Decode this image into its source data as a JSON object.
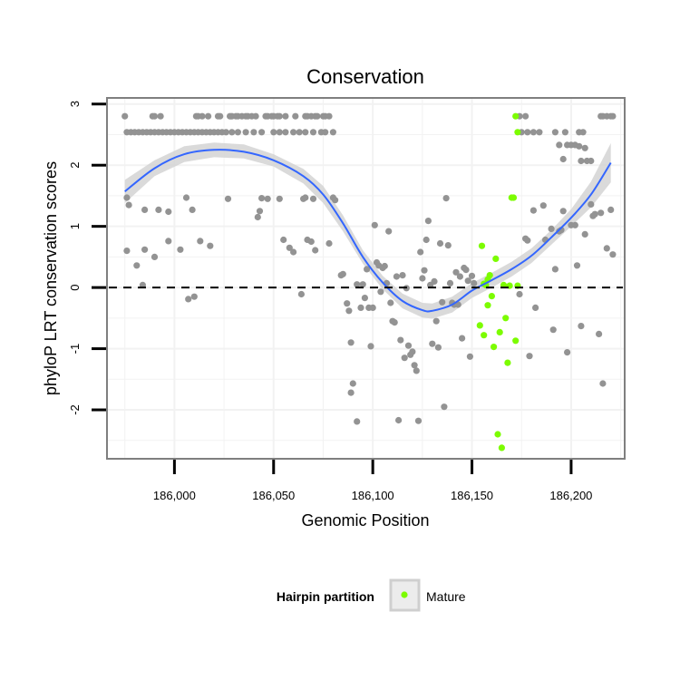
{
  "chart_data": {
    "type": "scatter",
    "title": "Conservation",
    "xlabel": "Genomic Position",
    "ylabel": "phyloP LRT conservation scores",
    "xlim": [
      185966,
      186227
    ],
    "ylim": [
      -2.8,
      3.1
    ],
    "x_ticks": [
      186000,
      186050,
      186100,
      186150,
      186200
    ],
    "x_tick_labels": [
      "186,000",
      "186,050",
      "186,100",
      "186,150",
      "186,200"
    ],
    "y_ticks": [
      -2,
      -1,
      0,
      1,
      2,
      3
    ],
    "y_tick_labels": [
      "-2",
      "-1",
      "0",
      "1",
      "2",
      "3"
    ],
    "grid": true,
    "reference_line": {
      "y": 0,
      "style": "dashed",
      "color": "#000000"
    },
    "legend": {
      "title": "Hairpin partition",
      "placement": "bottom",
      "entries": [
        {
          "label": "Mature",
          "color": "#7cfc00"
        }
      ]
    },
    "colors": {
      "background_points": "#939393",
      "mature_points": "#7cfc00",
      "smooth_line": "#3366ff",
      "confidence_band": "#d3d3d3",
      "panel_border": "#7f7f7f",
      "grid": "#f2f2f2"
    },
    "series": [
      {
        "name": "Other",
        "color": "#939393",
        "points": [
          [
            185975,
            2.8
          ],
          [
            185976,
            2.54
          ],
          [
            185978,
            2.54
          ],
          [
            185980,
            2.54
          ],
          [
            185982,
            2.54
          ],
          [
            185984,
            2.54
          ],
          [
            185986,
            2.54
          ],
          [
            185988,
            2.54
          ],
          [
            185990,
            2.54
          ],
          [
            185992,
            2.54
          ],
          [
            185994,
            2.54
          ],
          [
            185996,
            2.54
          ],
          [
            185998,
            2.54
          ],
          [
            186000,
            2.54
          ],
          [
            186002,
            2.54
          ],
          [
            186004,
            2.54
          ],
          [
            186006,
            2.54
          ],
          [
            186008,
            2.54
          ],
          [
            186010,
            2.54
          ],
          [
            186012,
            2.54
          ],
          [
            186014,
            2.54
          ],
          [
            186016,
            2.54
          ],
          [
            186018,
            2.54
          ],
          [
            186020,
            2.54
          ],
          [
            186022,
            2.54
          ],
          [
            186024,
            2.54
          ],
          [
            186026,
            2.54
          ],
          [
            186029,
            2.54
          ],
          [
            186032,
            2.54
          ],
          [
            186036,
            2.54
          ],
          [
            186040,
            2.54
          ],
          [
            186044,
            2.54
          ],
          [
            186050,
            2.54
          ],
          [
            186053,
            2.54
          ],
          [
            186056,
            2.54
          ],
          [
            186060,
            2.54
          ],
          [
            186063,
            2.54
          ],
          [
            186066,
            2.54
          ],
          [
            186070,
            2.54
          ],
          [
            186074,
            2.54
          ],
          [
            186076,
            2.54
          ],
          [
            186080,
            2.54
          ],
          [
            185989,
            2.8
          ],
          [
            185990,
            2.8
          ],
          [
            185993,
            2.8
          ],
          [
            186011,
            2.8
          ],
          [
            186012,
            2.8
          ],
          [
            186014,
            2.8
          ],
          [
            186017,
            2.8
          ],
          [
            186022,
            2.8
          ],
          [
            186023,
            2.8
          ],
          [
            186028,
            2.8
          ],
          [
            186029,
            2.8
          ],
          [
            186031,
            2.8
          ],
          [
            186032,
            2.8
          ],
          [
            186034,
            2.8
          ],
          [
            186036,
            2.8
          ],
          [
            186037,
            2.8
          ],
          [
            186039,
            2.8
          ],
          [
            186041,
            2.8
          ],
          [
            186046,
            2.8
          ],
          [
            186047,
            2.8
          ],
          [
            186049,
            2.8
          ],
          [
            186050,
            2.8
          ],
          [
            186052,
            2.8
          ],
          [
            186053,
            2.8
          ],
          [
            186056,
            2.8
          ],
          [
            186061,
            2.8
          ],
          [
            186066,
            2.8
          ],
          [
            186067,
            2.8
          ],
          [
            186069,
            2.8
          ],
          [
            186071,
            2.8
          ],
          [
            186072,
            2.8
          ],
          [
            186075,
            2.8
          ],
          [
            186076,
            2.8
          ],
          [
            186078,
            2.8
          ],
          [
            186174,
            2.8
          ],
          [
            186177,
            2.8
          ],
          [
            186175,
            2.54
          ],
          [
            186178,
            2.54
          ],
          [
            186181,
            2.54
          ],
          [
            186184,
            2.54
          ],
          [
            186192,
            2.54
          ],
          [
            186197,
            2.54
          ],
          [
            186204,
            2.54
          ],
          [
            186206,
            2.54
          ],
          [
            186215,
            2.8
          ],
          [
            186216,
            2.8
          ],
          [
            186218,
            2.8
          ],
          [
            186220,
            2.8
          ],
          [
            186221,
            2.8
          ],
          [
            186194,
            2.33
          ],
          [
            186198,
            2.33
          ],
          [
            186200,
            2.33
          ],
          [
            186202,
            2.33
          ],
          [
            186204,
            2.31
          ],
          [
            186207,
            2.28
          ],
          [
            186196,
            2.1
          ],
          [
            186205,
            2.07
          ],
          [
            186208,
            2.07
          ],
          [
            186210,
            2.07
          ],
          [
            185976,
            1.47
          ],
          [
            185977,
            1.35
          ],
          [
            185985,
            1.27
          ],
          [
            185992,
            1.27
          ],
          [
            185997,
            1.24
          ],
          [
            186006,
            1.47
          ],
          [
            186009,
            1.27
          ],
          [
            186013,
            0.76
          ],
          [
            186018,
            0.68
          ],
          [
            186027,
            1.45
          ],
          [
            186042,
            1.15
          ],
          [
            186043,
            1.25
          ],
          [
            186044,
            1.46
          ],
          [
            186047,
            1.45
          ],
          [
            186053,
            1.45
          ],
          [
            186065,
            1.45
          ],
          [
            186066,
            1.47
          ],
          [
            186070,
            1.45
          ],
          [
            186080,
            1.47
          ],
          [
            186081,
            1.43
          ],
          [
            185976,
            0.6
          ],
          [
            185981,
            0.36
          ],
          [
            185984,
            0.04
          ],
          [
            185985,
            0.62
          ],
          [
            185990,
            0.5
          ],
          [
            185997,
            0.76
          ],
          [
            186003,
            0.62
          ],
          [
            186007,
            -0.19
          ],
          [
            186010,
            -0.15
          ],
          [
            186055,
            0.78
          ],
          [
            186058,
            0.65
          ],
          [
            186060,
            0.58
          ],
          [
            186064,
            -0.11
          ],
          [
            186067,
            0.78
          ],
          [
            186069,
            0.75
          ],
          [
            186071,
            0.61
          ],
          [
            186078,
            0.72
          ],
          [
            186084,
            0.2
          ],
          [
            186085,
            0.22
          ],
          [
            186087,
            -0.26
          ],
          [
            186088,
            -0.38
          ],
          [
            186089,
            -0.9
          ],
          [
            186089,
            -1.72
          ],
          [
            186090,
            -1.57
          ],
          [
            186092,
            -2.19
          ],
          [
            186092,
            0.05
          ],
          [
            186094,
            -0.33
          ],
          [
            186095,
            0.05
          ],
          [
            186096,
            -0.17
          ],
          [
            186097,
            0.3
          ],
          [
            186098,
            -0.33
          ],
          [
            186099,
            -0.96
          ],
          [
            186100,
            -0.33
          ],
          [
            186101,
            1.02
          ],
          [
            186102,
            0.41
          ],
          [
            186103,
            0.36
          ],
          [
            186104,
            -0.07
          ],
          [
            186105,
            0.32
          ],
          [
            186106,
            0.35
          ],
          [
            186107,
            0.07
          ],
          [
            186108,
            0.92
          ],
          [
            186109,
            -0.25
          ],
          [
            186110,
            -0.55
          ],
          [
            186111,
            -0.57
          ],
          [
            186112,
            0.18
          ],
          [
            186113,
            -2.17
          ],
          [
            186114,
            -0.86
          ],
          [
            186115,
            0.2
          ],
          [
            186116,
            -1.15
          ],
          [
            186117,
            -0.01
          ],
          [
            186118,
            -0.95
          ],
          [
            186119,
            -1.1
          ],
          [
            186120,
            -1.05
          ],
          [
            186121,
            -1.27
          ],
          [
            186122,
            -1.36
          ],
          [
            186123,
            -2.18
          ],
          [
            186124,
            0.58
          ],
          [
            186125,
            0.15
          ],
          [
            186126,
            0.28
          ],
          [
            186127,
            0.78
          ],
          [
            186128,
            1.09
          ],
          [
            186129,
            0.04
          ],
          [
            186130,
            -0.92
          ],
          [
            186131,
            0.1
          ],
          [
            186132,
            -0.55
          ],
          [
            186133,
            -0.98
          ],
          [
            186134,
            0.72
          ],
          [
            186135,
            -0.24
          ],
          [
            186136,
            -1.95
          ],
          [
            186137,
            1.46
          ],
          [
            186138,
            0.69
          ],
          [
            186139,
            0.07
          ],
          [
            186140,
            -0.25
          ],
          [
            186141,
            -0.28
          ],
          [
            186142,
            0.25
          ],
          [
            186143,
            -0.28
          ],
          [
            186144,
            0.18
          ],
          [
            186145,
            -0.83
          ],
          [
            186146,
            0.32
          ],
          [
            186147,
            0.29
          ],
          [
            186148,
            0.11
          ],
          [
            186149,
            -1.13
          ],
          [
            186150,
            0.19
          ],
          [
            186151,
            0.07
          ],
          [
            186174,
            -0.11
          ],
          [
            186177,
            0.8
          ],
          [
            186178,
            0.77
          ],
          [
            186179,
            -1.12
          ],
          [
            186181,
            1.26
          ],
          [
            186182,
            -0.33
          ],
          [
            186186,
            1.34
          ],
          [
            186187,
            0.78
          ],
          [
            186190,
            0.96
          ],
          [
            186191,
            -0.69
          ],
          [
            186192,
            0.3
          ],
          [
            186194,
            0.92
          ],
          [
            186195,
            0.94
          ],
          [
            186196,
            1.25
          ],
          [
            186198,
            -1.06
          ],
          [
            186200,
            1.02
          ],
          [
            186202,
            1.02
          ],
          [
            186203,
            0.36
          ],
          [
            186205,
            -0.63
          ],
          [
            186207,
            0.87
          ],
          [
            186210,
            1.36
          ],
          [
            186211,
            1.17
          ],
          [
            186212,
            1.2
          ],
          [
            186214,
            -0.76
          ],
          [
            186215,
            1.22
          ],
          [
            186216,
            -1.57
          ],
          [
            186218,
            0.64
          ],
          [
            186220,
            1.27
          ],
          [
            186221,
            0.54
          ]
        ]
      },
      {
        "name": "Mature",
        "color": "#7cfc00",
        "points": [
          [
            186155,
            0.68
          ],
          [
            186156,
            0.06
          ],
          [
            186157,
            0.04
          ],
          [
            186158,
            0.13
          ],
          [
            186158,
            -0.29
          ],
          [
            186159,
            0.2
          ],
          [
            186160,
            -0.14
          ],
          [
            186154,
            -0.62
          ],
          [
            186156,
            -0.78
          ],
          [
            186161,
            -0.97
          ],
          [
            186162,
            0.47
          ],
          [
            186163,
            -2.4
          ],
          [
            186164,
            -0.73
          ],
          [
            186165,
            -2.62
          ],
          [
            186166,
            0.04
          ],
          [
            186167,
            -0.5
          ],
          [
            186168,
            -1.23
          ],
          [
            186169,
            0.03
          ],
          [
            186170,
            1.47
          ],
          [
            186171,
            1.47
          ],
          [
            186172,
            -0.87
          ],
          [
            186173,
            0.03
          ],
          [
            186172,
            2.8
          ],
          [
            186173,
            2.54
          ]
        ]
      }
    ],
    "smooth": {
      "method": "loess",
      "color": "#3366ff",
      "x": [
        185975,
        185990,
        186005,
        186020,
        186035,
        186050,
        186065,
        186075,
        186085,
        186095,
        186105,
        186115,
        186125,
        186130,
        186140,
        186150,
        186160,
        186170,
        186180,
        186190,
        186200,
        186210,
        186220
      ],
      "y": [
        1.57,
        1.95,
        2.18,
        2.25,
        2.22,
        2.08,
        1.82,
        1.52,
        1.05,
        0.5,
        0.08,
        -0.22,
        -0.37,
        -0.38,
        -0.28,
        -0.05,
        0.12,
        0.3,
        0.52,
        0.82,
        1.14,
        1.52,
        2.04
      ],
      "lower": [
        1.38,
        1.82,
        2.05,
        2.13,
        2.11,
        1.98,
        1.7,
        1.38,
        0.92,
        0.39,
        -0.03,
        -0.34,
        -0.49,
        -0.51,
        -0.41,
        -0.17,
        0.0,
        0.18,
        0.4,
        0.7,
        1.0,
        1.31,
        1.72
      ],
      "upper": [
        1.76,
        2.08,
        2.31,
        2.37,
        2.34,
        2.18,
        1.94,
        1.66,
        1.18,
        0.61,
        0.19,
        -0.1,
        -0.25,
        -0.26,
        -0.15,
        0.07,
        0.24,
        0.42,
        0.64,
        0.94,
        1.28,
        1.73,
        2.36
      ]
    }
  }
}
